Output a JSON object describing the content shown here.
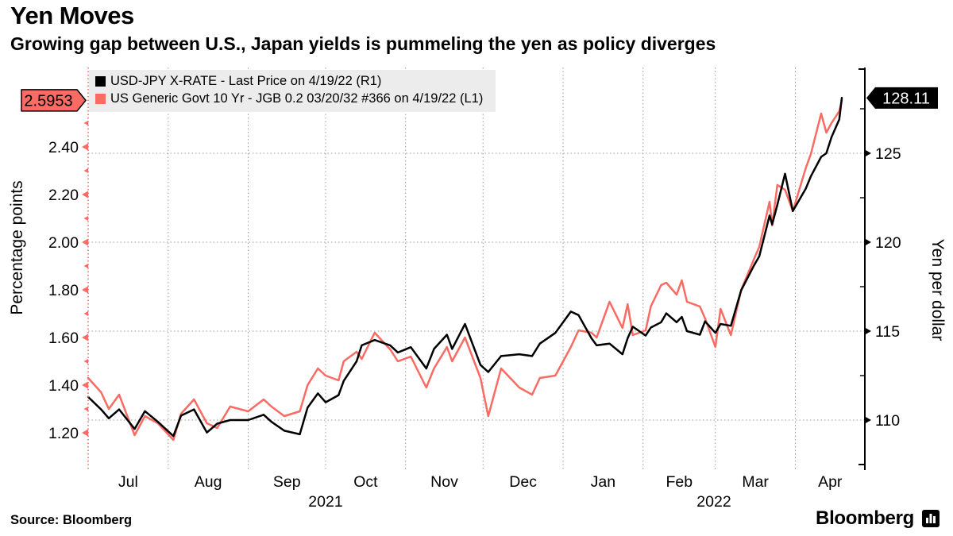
{
  "header": {
    "title": "Yen Moves",
    "subtitle": "Growing gap between U.S., Japan yields is pummeling the yen as policy diverges"
  },
  "legend": {
    "items": [
      {
        "label": "USD-JPY X-RATE - Last Price on 4/19/22 (R1)",
        "color": "#000000"
      },
      {
        "label": "US Generic Govt 10 Yr - JGB 0.2 03/20/32 #366 on 4/19/22 (L1)",
        "color": "#f96b63"
      }
    ]
  },
  "footer": {
    "source": "Source: Bloomberg",
    "logo_text": "Bloomberg",
    "logo_icon": "bar-chart-badge-icon"
  },
  "chart_data": {
    "type": "line",
    "title": "Yen Moves",
    "grid": "dotted",
    "colors": {
      "usdjpy": "#000000",
      "spread": "#f96b63",
      "grid": "#9b9b9b",
      "legend_bg": "#ececec"
    },
    "x_axis": {
      "start": "2021-07-01",
      "end": "2022-04-19",
      "month_labels": [
        "Jul",
        "Aug",
        "Sep",
        "Oct",
        "Nov",
        "Dec",
        "Jan",
        "Feb",
        "Mar",
        "Apr"
      ],
      "month_starts": [
        "2021-07-01",
        "2021-08-01",
        "2021-09-01",
        "2021-10-01",
        "2021-11-01",
        "2021-12-01",
        "2022-01-01",
        "2022-02-01",
        "2022-03-01",
        "2022-04-01"
      ],
      "year_labels": [
        {
          "label": "2021",
          "span_start": "2021-07-01",
          "span_end": "2022-01-01"
        },
        {
          "label": "2022",
          "span_start": "2022-01-01",
          "span_end": "2022-05-01"
        }
      ]
    },
    "left_axis": {
      "label": "Percentage points",
      "ticks": [
        "2.40",
        "2.20",
        "2.00",
        "1.80",
        "1.60",
        "1.40",
        "1.20"
      ],
      "minor_ticks": [
        2.5,
        2.3,
        2.1,
        1.9,
        1.7,
        1.5,
        1.3
      ],
      "last_value": 2.5953,
      "last_value_label": "2.5953",
      "color": "#f96b63"
    },
    "right_axis": {
      "label": "Yen per dollar",
      "ticks": [
        "125",
        "120",
        "115",
        "110"
      ],
      "minor_ticks": [
        127.5,
        122.5,
        117.5,
        112.5
      ],
      "last_value": 128.11,
      "last_value_label": "128.11",
      "color": "#000000"
    },
    "series": [
      {
        "name": "US Generic Govt 10 Yr - JGB 0.2 03/20/32 #366",
        "axis": "left",
        "color": "#f96b63",
        "points": [
          [
            "2021-07-01",
            1.43
          ],
          [
            "2021-07-06",
            1.37
          ],
          [
            "2021-07-09",
            1.3
          ],
          [
            "2021-07-13",
            1.36
          ],
          [
            "2021-07-19",
            1.19
          ],
          [
            "2021-07-23",
            1.27
          ],
          [
            "2021-07-28",
            1.24
          ],
          [
            "2021-08-03",
            1.17
          ],
          [
            "2021-08-06",
            1.28
          ],
          [
            "2021-08-11",
            1.34
          ],
          [
            "2021-08-16",
            1.24
          ],
          [
            "2021-08-20",
            1.22
          ],
          [
            "2021-08-25",
            1.31
          ],
          [
            "2021-09-01",
            1.29
          ],
          [
            "2021-09-07",
            1.34
          ],
          [
            "2021-09-10",
            1.31
          ],
          [
            "2021-09-15",
            1.27
          ],
          [
            "2021-09-21",
            1.29
          ],
          [
            "2021-09-24",
            1.4
          ],
          [
            "2021-09-28",
            1.47
          ],
          [
            "2021-10-01",
            1.44
          ],
          [
            "2021-10-06",
            1.42
          ],
          [
            "2021-10-08",
            1.5
          ],
          [
            "2021-10-13",
            1.54
          ],
          [
            "2021-10-15",
            1.51
          ],
          [
            "2021-10-20",
            1.62
          ],
          [
            "2021-10-26",
            1.55
          ],
          [
            "2021-10-29",
            1.5
          ],
          [
            "2021-11-03",
            1.52
          ],
          [
            "2021-11-09",
            1.39
          ],
          [
            "2021-11-12",
            1.47
          ],
          [
            "2021-11-17",
            1.56
          ],
          [
            "2021-11-19",
            1.5
          ],
          [
            "2021-11-24",
            1.6
          ],
          [
            "2021-11-30",
            1.43
          ],
          [
            "2021-12-03",
            1.27
          ],
          [
            "2021-12-08",
            1.47
          ],
          [
            "2021-12-15",
            1.39
          ],
          [
            "2021-12-20",
            1.36
          ],
          [
            "2021-12-23",
            1.43
          ],
          [
            "2021-12-29",
            1.44
          ],
          [
            "2022-01-04",
            1.56
          ],
          [
            "2022-01-07",
            1.63
          ],
          [
            "2022-01-12",
            1.62
          ],
          [
            "2022-01-14",
            1.6
          ],
          [
            "2022-01-19",
            1.75
          ],
          [
            "2022-01-24",
            1.64
          ],
          [
            "2022-01-26",
            1.74
          ],
          [
            "2022-01-28",
            1.61
          ],
          [
            "2022-02-02",
            1.63
          ],
          [
            "2022-02-04",
            1.73
          ],
          [
            "2022-02-08",
            1.82
          ],
          [
            "2022-02-10",
            1.83
          ],
          [
            "2022-02-14",
            1.78
          ],
          [
            "2022-02-16",
            1.84
          ],
          [
            "2022-02-18",
            1.75
          ],
          [
            "2022-02-23",
            1.73
          ],
          [
            "2022-02-25",
            1.68
          ],
          [
            "2022-03-01",
            1.56
          ],
          [
            "2022-03-03",
            1.72
          ],
          [
            "2022-03-07",
            1.61
          ],
          [
            "2022-03-11",
            1.8
          ],
          [
            "2022-03-16",
            1.93
          ],
          [
            "2022-03-18",
            1.98
          ],
          [
            "2022-03-22",
            2.17
          ],
          [
            "2022-03-23",
            2.07
          ],
          [
            "2022-03-25",
            2.24
          ],
          [
            "2022-03-28",
            2.22
          ],
          [
            "2022-03-31",
            2.13
          ],
          [
            "2022-04-05",
            2.31
          ],
          [
            "2022-04-07",
            2.37
          ],
          [
            "2022-04-11",
            2.54
          ],
          [
            "2022-04-13",
            2.46
          ],
          [
            "2022-04-15",
            2.5
          ],
          [
            "2022-04-18",
            2.55
          ],
          [
            "2022-04-19",
            2.5953
          ]
        ]
      },
      {
        "name": "USD-JPY X-RATE - Last Price",
        "axis": "right",
        "color": "#000000",
        "points": [
          [
            "2021-07-01",
            111.3
          ],
          [
            "2021-07-06",
            110.6
          ],
          [
            "2021-07-09",
            110.1
          ],
          [
            "2021-07-13",
            110.6
          ],
          [
            "2021-07-19",
            109.5
          ],
          [
            "2021-07-23",
            110.5
          ],
          [
            "2021-07-28",
            109.9
          ],
          [
            "2021-08-03",
            109.1
          ],
          [
            "2021-08-06",
            110.25
          ],
          [
            "2021-08-11",
            110.6
          ],
          [
            "2021-08-16",
            109.3
          ],
          [
            "2021-08-20",
            109.8
          ],
          [
            "2021-08-25",
            110.0
          ],
          [
            "2021-09-01",
            110.0
          ],
          [
            "2021-09-07",
            110.3
          ],
          [
            "2021-09-10",
            109.9
          ],
          [
            "2021-09-15",
            109.4
          ],
          [
            "2021-09-21",
            109.2
          ],
          [
            "2021-09-24",
            110.7
          ],
          [
            "2021-09-28",
            111.5
          ],
          [
            "2021-10-01",
            111.0
          ],
          [
            "2021-10-06",
            111.4
          ],
          [
            "2021-10-08",
            112.2
          ],
          [
            "2021-10-13",
            113.3
          ],
          [
            "2021-10-15",
            114.2
          ],
          [
            "2021-10-20",
            114.5
          ],
          [
            "2021-10-26",
            114.2
          ],
          [
            "2021-10-29",
            113.8
          ],
          [
            "2021-11-03",
            114.1
          ],
          [
            "2021-11-09",
            112.9
          ],
          [
            "2021-11-12",
            114.0
          ],
          [
            "2021-11-17",
            114.8
          ],
          [
            "2021-11-19",
            114.0
          ],
          [
            "2021-11-24",
            115.4
          ],
          [
            "2021-11-30",
            113.1
          ],
          [
            "2021-12-03",
            112.7
          ],
          [
            "2021-12-08",
            113.6
          ],
          [
            "2021-12-15",
            113.7
          ],
          [
            "2021-12-20",
            113.6
          ],
          [
            "2021-12-23",
            114.3
          ],
          [
            "2021-12-29",
            114.9
          ],
          [
            "2022-01-04",
            116.1
          ],
          [
            "2022-01-07",
            115.9
          ],
          [
            "2022-01-12",
            114.6
          ],
          [
            "2022-01-14",
            114.2
          ],
          [
            "2022-01-19",
            114.3
          ],
          [
            "2022-01-24",
            113.7
          ],
          [
            "2022-01-26",
            114.6
          ],
          [
            "2022-01-28",
            115.25
          ],
          [
            "2022-02-02",
            114.75
          ],
          [
            "2022-02-04",
            115.2
          ],
          [
            "2022-02-08",
            115.5
          ],
          [
            "2022-02-10",
            116.0
          ],
          [
            "2022-02-14",
            115.5
          ],
          [
            "2022-02-16",
            115.8
          ],
          [
            "2022-02-18",
            115.0
          ],
          [
            "2022-02-23",
            114.8
          ],
          [
            "2022-02-25",
            115.55
          ],
          [
            "2022-03-01",
            114.9
          ],
          [
            "2022-03-03",
            115.4
          ],
          [
            "2022-03-07",
            115.3
          ],
          [
            "2022-03-11",
            117.3
          ],
          [
            "2022-03-16",
            118.7
          ],
          [
            "2022-03-18",
            119.2
          ],
          [
            "2022-03-22",
            121.5
          ],
          [
            "2022-03-23",
            121.0
          ],
          [
            "2022-03-25",
            122.1
          ],
          [
            "2022-03-28",
            123.85
          ],
          [
            "2022-03-31",
            121.75
          ],
          [
            "2022-04-05",
            123.0
          ],
          [
            "2022-04-07",
            123.7
          ],
          [
            "2022-04-11",
            124.8
          ],
          [
            "2022-04-13",
            125.0
          ],
          [
            "2022-04-15",
            125.9
          ],
          [
            "2022-04-18",
            126.9
          ],
          [
            "2022-04-19",
            128.11
          ]
        ]
      }
    ]
  }
}
